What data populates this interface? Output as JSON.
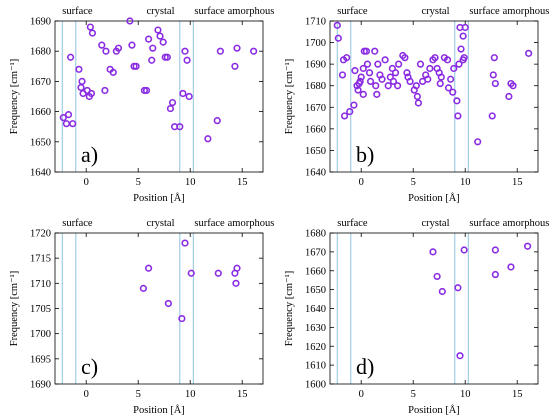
{
  "colors": {
    "marker": "#8a2be2",
    "divider": "#8fc3e0",
    "axis": "#000000"
  },
  "region_labels": [
    "surface",
    "crystal",
    "surface",
    "amorphous"
  ],
  "chart_data": [
    {
      "type": "scatter",
      "panel_label": "a)",
      "xlabel": "Position [Å]",
      "ylabel": "Frequency [cm⁻¹]",
      "xlim": [
        -3,
        17
      ],
      "ylim": [
        1640,
        1690
      ],
      "xticks": [
        0,
        5,
        10,
        15
      ],
      "yticks": [
        1640,
        1650,
        1660,
        1670,
        1680,
        1690
      ],
      "region_dividers": [
        -2.3,
        -1.0,
        9.0,
        10.3
      ],
      "points": [
        [
          -2.2,
          1658
        ],
        [
          -1.9,
          1656
        ],
        [
          -1.7,
          1659
        ],
        [
          -1.5,
          1678
        ],
        [
          -1.3,
          1656
        ],
        [
          -0.7,
          1674
        ],
        [
          -0.5,
          1668
        ],
        [
          -0.4,
          1670
        ],
        [
          -0.3,
          1666
        ],
        [
          0.1,
          1667
        ],
        [
          0.3,
          1665
        ],
        [
          0.4,
          1688
        ],
        [
          0.6,
          1686
        ],
        [
          0.5,
          1666
        ],
        [
          1.5,
          1682
        ],
        [
          1.9,
          1680
        ],
        [
          2.3,
          1674
        ],
        [
          2.6,
          1673
        ],
        [
          2.9,
          1680
        ],
        [
          1.8,
          1667
        ],
        [
          3.1,
          1681
        ],
        [
          4.2,
          1690
        ],
        [
          4.4,
          1682
        ],
        [
          4.6,
          1675
        ],
        [
          4.8,
          1675
        ],
        [
          5.6,
          1667
        ],
        [
          5.8,
          1667
        ],
        [
          6.0,
          1684
        ],
        [
          6.3,
          1677
        ],
        [
          6.4,
          1681
        ],
        [
          6.9,
          1687
        ],
        [
          7.1,
          1685
        ],
        [
          7.4,
          1683
        ],
        [
          7.6,
          1678
        ],
        [
          7.8,
          1678
        ],
        [
          8.1,
          1661
        ],
        [
          8.3,
          1663
        ],
        [
          8.5,
          1655
        ],
        [
          9.0,
          1655
        ],
        [
          9.3,
          1666
        ],
        [
          9.5,
          1680
        ],
        [
          9.7,
          1677
        ],
        [
          9.9,
          1665
        ],
        [
          11.7,
          1651
        ],
        [
          12.6,
          1657
        ],
        [
          12.9,
          1680
        ],
        [
          14.3,
          1675
        ],
        [
          14.5,
          1681
        ],
        [
          16.1,
          1680
        ]
      ]
    },
    {
      "type": "scatter",
      "panel_label": "b)",
      "xlabel": "Position [Å]",
      "ylabel": "Frequency [cm⁻¹]",
      "xlim": [
        -3,
        17
      ],
      "ylim": [
        1640,
        1710
      ],
      "xticks": [
        0,
        5,
        10,
        15
      ],
      "yticks": [
        1640,
        1650,
        1660,
        1670,
        1680,
        1690,
        1700,
        1710
      ],
      "region_dividers": [
        -2.3,
        -1.0,
        9.0,
        10.3
      ],
      "points": [
        [
          -2.3,
          1708
        ],
        [
          -2.2,
          1702
        ],
        [
          -1.8,
          1685
        ],
        [
          -1.7,
          1692
        ],
        [
          -1.4,
          1693
        ],
        [
          -1.6,
          1666
        ],
        [
          -1.1,
          1668
        ],
        [
          -0.7,
          1671
        ],
        [
          -0.6,
          1687
        ],
        [
          -0.4,
          1680
        ],
        [
          -0.3,
          1678
        ],
        [
          -0.2,
          1681
        ],
        [
          -0.1,
          1682
        ],
        [
          0.0,
          1684
        ],
        [
          0.2,
          1676
        ],
        [
          0.2,
          1688
        ],
        [
          0.3,
          1696
        ],
        [
          0.5,
          1696
        ],
        [
          0.6,
          1690
        ],
        [
          0.8,
          1686
        ],
        [
          0.9,
          1682
        ],
        [
          1.3,
          1696
        ],
        [
          1.4,
          1680
        ],
        [
          1.5,
          1676
        ],
        [
          1.6,
          1690
        ],
        [
          1.8,
          1685
        ],
        [
          2.0,
          1683
        ],
        [
          2.3,
          1692
        ],
        [
          2.6,
          1680
        ],
        [
          2.8,
          1684
        ],
        [
          3.0,
          1688
        ],
        [
          3.1,
          1682
        ],
        [
          3.3,
          1686
        ],
        [
          3.5,
          1680
        ],
        [
          3.6,
          1690
        ],
        [
          4.0,
          1694
        ],
        [
          4.2,
          1693
        ],
        [
          4.4,
          1686
        ],
        [
          4.5,
          1684
        ],
        [
          4.7,
          1682
        ],
        [
          5.1,
          1678
        ],
        [
          5.3,
          1680
        ],
        [
          5.4,
          1675
        ],
        [
          5.5,
          1672
        ],
        [
          5.7,
          1690
        ],
        [
          5.9,
          1682
        ],
        [
          6.2,
          1685
        ],
        [
          6.4,
          1683
        ],
        [
          6.6,
          1688
        ],
        [
          6.9,
          1692
        ],
        [
          7.1,
          1693
        ],
        [
          7.3,
          1688
        ],
        [
          7.5,
          1686
        ],
        [
          7.6,
          1681
        ],
        [
          7.7,
          1684
        ],
        [
          8.0,
          1693
        ],
        [
          8.3,
          1692
        ],
        [
          8.4,
          1679
        ],
        [
          8.6,
          1683
        ],
        [
          8.8,
          1677
        ],
        [
          8.9,
          1688
        ],
        [
          9.2,
          1673
        ],
        [
          9.3,
          1666
        ],
        [
          9.4,
          1690
        ],
        [
          9.5,
          1707
        ],
        [
          9.6,
          1697
        ],
        [
          9.8,
          1703
        ],
        [
          10.0,
          1707
        ],
        [
          9.8,
          1692
        ],
        [
          9.9,
          1693
        ],
        [
          11.2,
          1654
        ],
        [
          12.6,
          1666
        ],
        [
          12.8,
          1693
        ],
        [
          12.7,
          1685
        ],
        [
          12.9,
          1681
        ],
        [
          14.2,
          1675
        ],
        [
          14.4,
          1681
        ],
        [
          14.6,
          1680
        ],
        [
          16.1,
          1695
        ]
      ]
    },
    {
      "type": "scatter",
      "panel_label": "c)",
      "xlabel": "Position [Å]",
      "ylabel": "Frequency [cm⁻¹]",
      "xlim": [
        -3,
        17
      ],
      "ylim": [
        1690,
        1720
      ],
      "xticks": [
        0,
        5,
        10,
        15
      ],
      "yticks": [
        1690,
        1695,
        1700,
        1705,
        1710,
        1715,
        1720
      ],
      "region_dividers": [
        -2.3,
        -1.0,
        9.0,
        10.3
      ],
      "points": [
        [
          5.5,
          1709
        ],
        [
          6.0,
          1713
        ],
        [
          7.9,
          1706
        ],
        [
          9.2,
          1703
        ],
        [
          9.5,
          1718
        ],
        [
          10.1,
          1712
        ],
        [
          12.7,
          1712
        ],
        [
          14.3,
          1712
        ],
        [
          14.4,
          1710
        ],
        [
          14.5,
          1713
        ]
      ]
    },
    {
      "type": "scatter",
      "panel_label": "d)",
      "xlabel": "Position [Å]",
      "ylabel": "Frequency [cm⁻¹]",
      "xlim": [
        -3,
        17
      ],
      "ylim": [
        1600,
        1680
      ],
      "xticks": [
        0,
        5,
        10,
        15
      ],
      "yticks": [
        1600,
        1610,
        1620,
        1630,
        1640,
        1650,
        1660,
        1670,
        1680
      ],
      "region_dividers": [
        -2.3,
        -1.0,
        9.0,
        10.3
      ],
      "points": [
        [
          6.9,
          1670
        ],
        [
          7.3,
          1657
        ],
        [
          7.8,
          1649
        ],
        [
          9.3,
          1651
        ],
        [
          9.5,
          1615
        ],
        [
          9.9,
          1671
        ],
        [
          12.9,
          1658
        ],
        [
          12.9,
          1671
        ],
        [
          14.4,
          1662
        ],
        [
          16.0,
          1673
        ]
      ]
    }
  ]
}
